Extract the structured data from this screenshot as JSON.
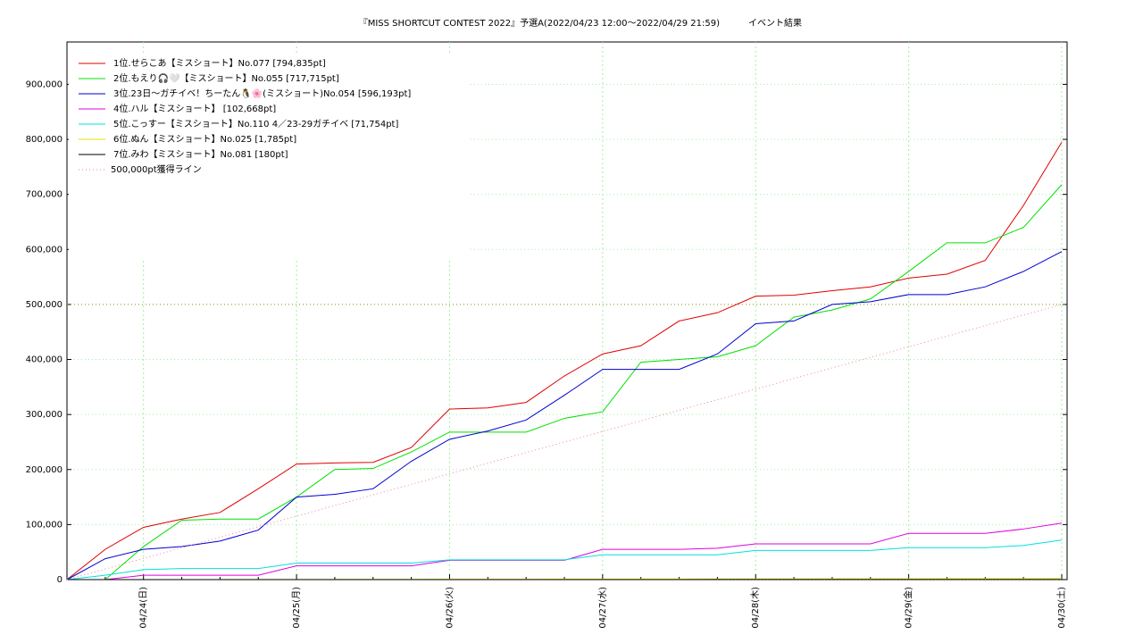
{
  "chart_data": {
    "type": "line",
    "title": "『MISS SHORTCUT CONTEST 2022』予選A(2022/04/23 12:00～2022/04/29 21:59)",
    "subtitle": "イベント結果",
    "categories": [
      null,
      null,
      "04/24(日)",
      null,
      null,
      null,
      "04/25(月)",
      null,
      null,
      null,
      "04/26(火)",
      null,
      null,
      null,
      "04/27(水)",
      null,
      null,
      null,
      "04/28(木)",
      null,
      null,
      null,
      "04/29(金)",
      null,
      null,
      null,
      "04/30(土)"
    ],
    "series": [
      {
        "name": "1位.せらこあ【ミスショート】No.077 [794,835pt]",
        "color": "#e00000",
        "style": "solid",
        "values": [
          0,
          55000,
          95000,
          110000,
          122000,
          165000,
          210000,
          212000,
          213000,
          240000,
          310000,
          312000,
          322000,
          370000,
          410000,
          425000,
          470000,
          485000,
          515000,
          517000,
          525000,
          532000,
          548000,
          555000,
          580000,
          680000,
          794835
        ]
      },
      {
        "name": "2位.もえり🎧🤍【ミスショート】No.055 [717,715pt]",
        "color": "#00e000",
        "style": "solid",
        "values": [
          0,
          0,
          60000,
          108000,
          110000,
          110000,
          150000,
          200000,
          202000,
          232000,
          268000,
          268000,
          268000,
          293000,
          305000,
          395000,
          400000,
          405000,
          425000,
          477000,
          490000,
          510000,
          560000,
          612000,
          612000,
          640000,
          717715
        ]
      },
      {
        "name": "3位.23日〜ガチイベ！ちーたん🐧🌸(ミスショート)No.054 [596,193pt]",
        "color": "#0000d0",
        "style": "solid",
        "values": [
          0,
          38000,
          55000,
          60000,
          70000,
          90000,
          150000,
          155000,
          165000,
          215000,
          255000,
          270000,
          290000,
          335000,
          382000,
          382000,
          382000,
          410000,
          465000,
          470000,
          500000,
          505000,
          518000,
          518000,
          532000,
          560000,
          596193
        ]
      },
      {
        "name": "4位.ハル【ミスショート】 [102,668pt]",
        "color": "#e000e0",
        "style": "solid",
        "values": [
          0,
          0,
          8000,
          8000,
          8000,
          8000,
          25000,
          25000,
          25000,
          25000,
          35000,
          35000,
          35000,
          35000,
          55000,
          55000,
          55000,
          57000,
          65000,
          65000,
          65000,
          65000,
          84000,
          84000,
          84000,
          92000,
          102668
        ]
      },
      {
        "name": "5位.こっすー【ミスショート】No.110 4／23-29ガチイベ [71,754pt]",
        "color": "#00e0e0",
        "style": "solid",
        "values": [
          0,
          8000,
          18000,
          20000,
          20000,
          20000,
          30000,
          30000,
          30000,
          30000,
          36000,
          36000,
          36000,
          36000,
          45000,
          45000,
          45000,
          45000,
          53000,
          53000,
          53000,
          53000,
          58000,
          58000,
          58000,
          62000,
          71754
        ]
      },
      {
        "name": "6位.ぬん【ミスショート】No.025 [1,785pt]",
        "color": "#e0e000",
        "style": "solid",
        "values": [
          0,
          0,
          0,
          0,
          100,
          200,
          300,
          300,
          400,
          500,
          600,
          600,
          700,
          800,
          900,
          1000,
          1000,
          1100,
          1200,
          1300,
          1400,
          1400,
          1500,
          1600,
          1700,
          1700,
          1785
        ]
      },
      {
        "name": "7位.みわ【ミスショート】No.081 [180pt]",
        "color": "#000000",
        "style": "solid",
        "values": [
          0,
          0,
          0,
          0,
          0,
          0,
          0,
          20,
          20,
          40,
          40,
          60,
          60,
          80,
          80,
          100,
          100,
          120,
          120,
          140,
          140,
          160,
          160,
          180,
          180,
          180,
          180
        ]
      },
      {
        "name": "500,000pt獲得ライン",
        "color": "#f080a0",
        "style": "dotted",
        "values": [
          0,
          19231,
          38462,
          57692,
          76923,
          96154,
          115385,
          134615,
          153846,
          173077,
          192308,
          211538,
          230769,
          250000,
          269231,
          288462,
          307692,
          326923,
          346154,
          365385,
          384615,
          403846,
          423077,
          442308,
          461538,
          480769,
          500000
        ]
      }
    ],
    "hline": 500000,
    "hline_color": "#80a000",
    "ylim": [
      0,
      977000
    ],
    "yticks": [
      0,
      {
        "value": 100000,
        "label": "100,000"
      },
      {
        "value": 200000,
        "label": "200,000"
      },
      {
        "value": 300000,
        "label": "300,000"
      },
      {
        "value": 400000,
        "label": "400,000"
      },
      {
        "value": 500000,
        "label": "500,000"
      },
      {
        "value": 600000,
        "label": "600,000"
      },
      {
        "value": 700000,
        "label": "700,000"
      },
      {
        "value": 800000,
        "label": "800,000"
      },
      {
        "value": 900000,
        "label": "900,000"
      }
    ],
    "grid": true,
    "grid_color": "#a0f0a0",
    "legend": "upper left"
  }
}
